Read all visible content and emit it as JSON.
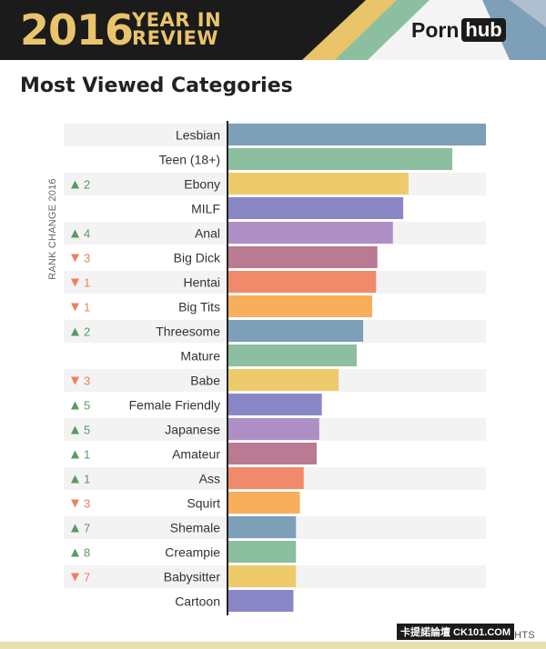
{
  "header": {
    "year": "2016",
    "year_in_review": [
      "YEAR IN",
      "REVIEW"
    ],
    "logo": {
      "left": "Porn",
      "right": "hub"
    }
  },
  "chart_data": {
    "type": "bar",
    "orientation": "horizontal",
    "title": "Most Viewed Categories",
    "xlabel": "",
    "ylabel": "RANK CHANGE 2016",
    "xlim": [
      0,
      100
    ],
    "grid": false,
    "categories": [
      "Lesbian",
      "Teen (18+)",
      "Ebony",
      "MILF",
      "Anal",
      "Big Dick",
      "Hentai",
      "Big Tits",
      "Threesome",
      "Mature",
      "Babe",
      "Female Friendly",
      "Japanese",
      "Amateur",
      "Ass",
      "Squirt",
      "Shemale",
      "Creampie",
      "Babysitter",
      "Cartoon"
    ],
    "values": [
      100,
      87,
      70,
      68,
      64,
      58,
      57.5,
      56,
      52.5,
      50,
      43,
      36.5,
      35.5,
      34.5,
      29.5,
      28,
      26.5,
      26.5,
      26.5,
      25.5
    ],
    "rank_change": [
      {
        "dir": "",
        "value": ""
      },
      {
        "dir": "",
        "value": ""
      },
      {
        "dir": "up",
        "value": "2"
      },
      {
        "dir": "",
        "value": ""
      },
      {
        "dir": "up",
        "value": "4"
      },
      {
        "dir": "down",
        "value": "3"
      },
      {
        "dir": "down",
        "value": "1"
      },
      {
        "dir": "down",
        "value": "1"
      },
      {
        "dir": "up",
        "value": "2"
      },
      {
        "dir": "",
        "value": ""
      },
      {
        "dir": "down",
        "value": "3"
      },
      {
        "dir": "up",
        "value": "5"
      },
      {
        "dir": "up",
        "value": "5"
      },
      {
        "dir": "up",
        "value": "1"
      },
      {
        "dir": "up",
        "value": "1"
      },
      {
        "dir": "down",
        "value": "3"
      },
      {
        "dir": "up",
        "value": "7"
      },
      {
        "dir": "up",
        "value": "8"
      },
      {
        "dir": "down",
        "value": "7"
      },
      {
        "dir": "",
        "value": ""
      }
    ],
    "bar_colors": [
      "#7d9fb8",
      "#8bbf9f",
      "#eecb6a",
      "#8a87c7",
      "#ad8fc6",
      "#b97a92",
      "#f08a6a",
      "#f8ae5a"
    ],
    "up_color": "#5a9a62",
    "down_color": "#ee7f5e"
  },
  "footer": {
    "url": "PORNHUB.COM/INSIGHTS",
    "watermark": "卡提諾論壇 CK101.COM"
  }
}
